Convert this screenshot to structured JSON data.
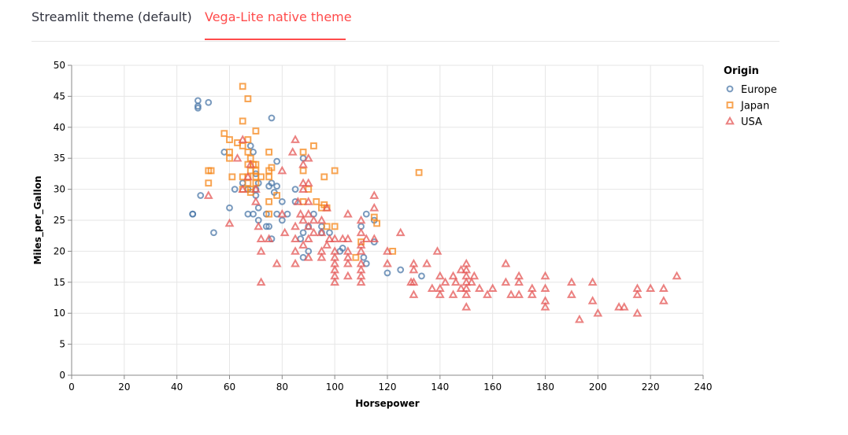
{
  "tabs": [
    {
      "label": "Streamlit theme (default)",
      "active": false
    },
    {
      "label": "Vega-Lite native theme",
      "active": true
    }
  ],
  "colors": {
    "accent": "#ff4b4b",
    "Europe": "#4c78a8",
    "Japan": "#f58518",
    "USA": "#e45756"
  },
  "chart_data": {
    "type": "scatter",
    "xlabel": "Horsepower",
    "ylabel": "Miles_per_Gallon",
    "xlim": [
      0,
      240
    ],
    "ylim": [
      0,
      50
    ],
    "xticks": [
      0,
      20,
      40,
      60,
      80,
      100,
      120,
      140,
      160,
      180,
      200,
      220,
      240
    ],
    "yticks": [
      0,
      5,
      10,
      15,
      20,
      25,
      30,
      35,
      40,
      45,
      50
    ],
    "grid": true,
    "legend": {
      "title": "Origin",
      "position": "top-right"
    },
    "series": [
      {
        "name": "Europe",
        "shape": "circle",
        "points": [
          [
            46,
            26
          ],
          [
            46,
            26
          ],
          [
            48,
            43.4
          ],
          [
            48,
            44.3
          ],
          [
            48,
            43.1
          ],
          [
            49,
            29
          ],
          [
            52,
            44
          ],
          [
            54,
            23
          ],
          [
            58,
            36
          ],
          [
            60,
            27
          ],
          [
            62,
            30
          ],
          [
            65,
            31
          ],
          [
            67,
            26
          ],
          [
            67,
            30
          ],
          [
            68,
            37
          ],
          [
            69,
            36
          ],
          [
            69,
            26
          ],
          [
            70,
            30
          ],
          [
            70,
            32.5
          ],
          [
            70,
            29
          ],
          [
            71,
            31
          ],
          [
            71,
            25
          ],
          [
            71,
            27
          ],
          [
            74,
            24
          ],
          [
            74,
            26
          ],
          [
            75,
            24
          ],
          [
            75,
            30.5
          ],
          [
            76,
            22
          ],
          [
            76,
            41.5
          ],
          [
            76,
            31
          ],
          [
            77,
            29.5
          ],
          [
            78,
            34.5
          ],
          [
            78,
            26
          ],
          [
            78,
            30.5
          ],
          [
            80,
            28
          ],
          [
            80,
            25
          ],
          [
            82,
            26
          ],
          [
            85,
            28
          ],
          [
            85,
            30
          ],
          [
            87,
            22
          ],
          [
            88,
            23
          ],
          [
            88,
            35
          ],
          [
            88,
            19
          ],
          [
            90,
            20
          ],
          [
            90,
            24
          ],
          [
            92,
            26
          ],
          [
            95,
            24
          ],
          [
            95,
            23
          ],
          [
            98,
            23
          ],
          [
            102,
            20
          ],
          [
            103,
            20.5
          ],
          [
            110,
            24
          ],
          [
            111,
            19
          ],
          [
            112,
            18
          ],
          [
            112,
            26
          ],
          [
            115,
            25
          ],
          [
            115,
            21.5
          ],
          [
            120,
            16.5
          ],
          [
            125,
            17
          ],
          [
            133,
            16
          ]
        ]
      },
      {
        "name": "Japan",
        "shape": "square",
        "points": [
          [
            52,
            33
          ],
          [
            52,
            31
          ],
          [
            53,
            33
          ],
          [
            58,
            39
          ],
          [
            60,
            36
          ],
          [
            60,
            38
          ],
          [
            60,
            35
          ],
          [
            61,
            32
          ],
          [
            63,
            37.5
          ],
          [
            65,
            46.6
          ],
          [
            65,
            41
          ],
          [
            65,
            37
          ],
          [
            65,
            32
          ],
          [
            65,
            30
          ],
          [
            67,
            44.6
          ],
          [
            67,
            38
          ],
          [
            67,
            36
          ],
          [
            67,
            34
          ],
          [
            67,
            32
          ],
          [
            67,
            31
          ],
          [
            68,
            35
          ],
          [
            68,
            33
          ],
          [
            68,
            30
          ],
          [
            68,
            29.5
          ],
          [
            69,
            34
          ],
          [
            70,
            39.4
          ],
          [
            70,
            34
          ],
          [
            70,
            33
          ],
          [
            70,
            32
          ],
          [
            70,
            31
          ],
          [
            72,
            32
          ],
          [
            75,
            36
          ],
          [
            75,
            33
          ],
          [
            75,
            32
          ],
          [
            75,
            28
          ],
          [
            75,
            26
          ],
          [
            76,
            33.5
          ],
          [
            78,
            29
          ],
          [
            88,
            36
          ],
          [
            88,
            33
          ],
          [
            88,
            28
          ],
          [
            90,
            30
          ],
          [
            92,
            37
          ],
          [
            93,
            28
          ],
          [
            95,
            27
          ],
          [
            96,
            32
          ],
          [
            96,
            27.5
          ],
          [
            97,
            24
          ],
          [
            97,
            27
          ],
          [
            100,
            24
          ],
          [
            100,
            33
          ],
          [
            108,
            19
          ],
          [
            110,
            21.5
          ],
          [
            115,
            25.5
          ],
          [
            116,
            24.5
          ],
          [
            122,
            20
          ],
          [
            132,
            32.7
          ]
        ]
      },
      {
        "name": "USA",
        "shape": "triangle",
        "points": [
          [
            52,
            29
          ],
          [
            60,
            24.5
          ],
          [
            63,
            35
          ],
          [
            65,
            38
          ],
          [
            65,
            30
          ],
          [
            67,
            32
          ],
          [
            68,
            34
          ],
          [
            70,
            30
          ],
          [
            70,
            28
          ],
          [
            71,
            24
          ],
          [
            72,
            15
          ],
          [
            72,
            20
          ],
          [
            72,
            22
          ],
          [
            75,
            22
          ],
          [
            78,
            18
          ],
          [
            80,
            26
          ],
          [
            80,
            33
          ],
          [
            81,
            23
          ],
          [
            84,
            36
          ],
          [
            85,
            38
          ],
          [
            85,
            24
          ],
          [
            85,
            22
          ],
          [
            85,
            18
          ],
          [
            85,
            20
          ],
          [
            86,
            28
          ],
          [
            87,
            26
          ],
          [
            88,
            31
          ],
          [
            88,
            34
          ],
          [
            88,
            30
          ],
          [
            88,
            25
          ],
          [
            88,
            21
          ],
          [
            90,
            24
          ],
          [
            90,
            26
          ],
          [
            90,
            22
          ],
          [
            90,
            28
          ],
          [
            90,
            31
          ],
          [
            90,
            35
          ],
          [
            90,
            19
          ],
          [
            92,
            25
          ],
          [
            92,
            23
          ],
          [
            95,
            25
          ],
          [
            95,
            23
          ],
          [
            95,
            20
          ],
          [
            95,
            19
          ],
          [
            97,
            27
          ],
          [
            97,
            21
          ],
          [
            98,
            22
          ],
          [
            100,
            22
          ],
          [
            100,
            20
          ],
          [
            100,
            19
          ],
          [
            100,
            18
          ],
          [
            100,
            17
          ],
          [
            100,
            16
          ],
          [
            100,
            15
          ],
          [
            103,
            22
          ],
          [
            105,
            22
          ],
          [
            105,
            26
          ],
          [
            105,
            20
          ],
          [
            105,
            19
          ],
          [
            105,
            18
          ],
          [
            105,
            16
          ],
          [
            110,
            25
          ],
          [
            110,
            23
          ],
          [
            110,
            21
          ],
          [
            110,
            20
          ],
          [
            110,
            18
          ],
          [
            110,
            17
          ],
          [
            110,
            16
          ],
          [
            110,
            15
          ],
          [
            112,
            22
          ],
          [
            115,
            29
          ],
          [
            115,
            27
          ],
          [
            115,
            22
          ],
          [
            120,
            20
          ],
          [
            120,
            18
          ],
          [
            125,
            23
          ],
          [
            129,
            15
          ],
          [
            130,
            18
          ],
          [
            130,
            17
          ],
          [
            130,
            15
          ],
          [
            130,
            13
          ],
          [
            135,
            18
          ],
          [
            137,
            14
          ],
          [
            139,
            20
          ],
          [
            140,
            16
          ],
          [
            140,
            14
          ],
          [
            140,
            13
          ],
          [
            142,
            15
          ],
          [
            145,
            16
          ],
          [
            145,
            13
          ],
          [
            146,
            15
          ],
          [
            148,
            17
          ],
          [
            148,
            14
          ],
          [
            150,
            18
          ],
          [
            150,
            17
          ],
          [
            150,
            16
          ],
          [
            150,
            15
          ],
          [
            150,
            14
          ],
          [
            150,
            13
          ],
          [
            150,
            11
          ],
          [
            152,
            15
          ],
          [
            153,
            16
          ],
          [
            155,
            14
          ],
          [
            158,
            13
          ],
          [
            160,
            14
          ],
          [
            165,
            18
          ],
          [
            165,
            15
          ],
          [
            167,
            13
          ],
          [
            170,
            16
          ],
          [
            170,
            15
          ],
          [
            170,
            13
          ],
          [
            175,
            14
          ],
          [
            175,
            13
          ],
          [
            180,
            16
          ],
          [
            180,
            14
          ],
          [
            180,
            12
          ],
          [
            180,
            11
          ],
          [
            190,
            15
          ],
          [
            190,
            13
          ],
          [
            193,
            9
          ],
          [
            198,
            15
          ],
          [
            198,
            12
          ],
          [
            200,
            10
          ],
          [
            208,
            11
          ],
          [
            210,
            11
          ],
          [
            215,
            14
          ],
          [
            215,
            13
          ],
          [
            215,
            10
          ],
          [
            220,
            14
          ],
          [
            225,
            14
          ],
          [
            225,
            12
          ],
          [
            230,
            16
          ]
        ]
      }
    ]
  }
}
